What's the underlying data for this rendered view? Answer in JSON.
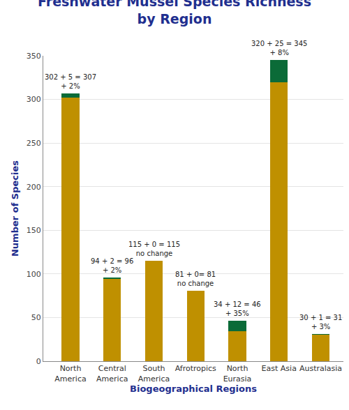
{
  "chart_data": {
    "type": "bar",
    "title": "Freshwater Mussel Species Richness by Region",
    "x_label": "Biogeographical Regions",
    "y_label": "Number of Species",
    "categories": [
      "North America",
      "Central America",
      "South America",
      "Afrotropics",
      "North Eurasia",
      "East Asia",
      "Australasia"
    ],
    "series": [
      {
        "color": "#bf9000",
        "values": [
          302,
          94,
          115,
          81,
          34,
          320,
          30
        ]
      },
      {
        "color": "#0b6b38",
        "values": [
          5,
          2,
          0,
          0,
          12,
          25,
          1
        ]
      }
    ],
    "annotations": [
      [
        "302 + 5 = 307",
        "+ 2%"
      ],
      [
        "94 + 2 = 96",
        "+ 2%"
      ],
      [
        "115 + 0 = 115",
        "no change"
      ],
      [
        "81 + 0= 81",
        "no change"
      ],
      [
        "34 + 12 = 46",
        "+ 35%"
      ],
      [
        "320 + 25 = 345",
        "+ 8%"
      ],
      [
        "30 + 1 = 31",
        "+ 3%"
      ]
    ],
    "stacked": true,
    "grid": true,
    "ylim": [
      0,
      350
    ],
    "yticks": [
      0,
      50,
      100,
      150,
      200,
      250,
      300,
      350
    ]
  }
}
